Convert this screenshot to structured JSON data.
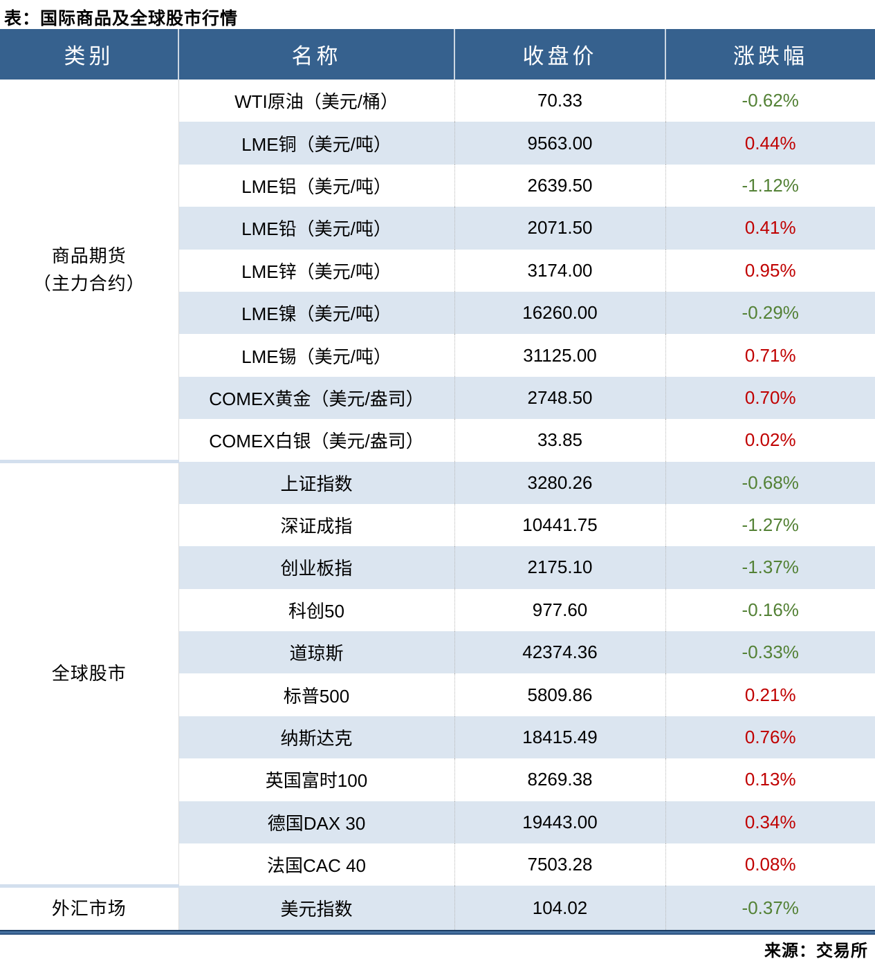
{
  "title": "表：国际商品及全球股市行情",
  "source": "来源：交易所",
  "colors": {
    "header_bg": "#36618e",
    "band_row": "#dbe5f0",
    "positive_change": "#c00000",
    "negative_change": "#538135",
    "category_separator": "#d3dfee",
    "bottom_rule": "#2c5280"
  },
  "table": {
    "columns": [
      "类别",
      "名称",
      "收盘价",
      "涨跌幅"
    ],
    "sections": [
      {
        "category": "商品期货",
        "category_line2": "（主力合约）",
        "rows": [
          {
            "name": "WTI原油（美元/桶）",
            "close": "70.33",
            "change": "-0.62%"
          },
          {
            "name": "LME铜（美元/吨）",
            "close": "9563.00",
            "change": "0.44%"
          },
          {
            "name": "LME铝（美元/吨）",
            "close": "2639.50",
            "change": "-1.12%"
          },
          {
            "name": "LME铅（美元/吨）",
            "close": "2071.50",
            "change": "0.41%"
          },
          {
            "name": "LME锌（美元/吨）",
            "close": "3174.00",
            "change": "0.95%"
          },
          {
            "name": "LME镍（美元/吨）",
            "close": "16260.00",
            "change": "-0.29%"
          },
          {
            "name": "LME锡（美元/吨）",
            "close": "31125.00",
            "change": "0.71%"
          },
          {
            "name": "COMEX黄金（美元/盎司）",
            "close": "2748.50",
            "change": "0.70%"
          },
          {
            "name": "COMEX白银（美元/盎司）",
            "close": "33.85",
            "change": "0.02%"
          }
        ]
      },
      {
        "category": "全球股市",
        "category_line2": "",
        "rows": [
          {
            "name": "上证指数",
            "close": "3280.26",
            "change": "-0.68%"
          },
          {
            "name": "深证成指",
            "close": "10441.75",
            "change": "-1.27%"
          },
          {
            "name": "创业板指",
            "close": "2175.10",
            "change": "-1.37%"
          },
          {
            "name": "科创50",
            "close": "977.60",
            "change": "-0.16%"
          },
          {
            "name": "道琼斯",
            "close": "42374.36",
            "change": "-0.33%"
          },
          {
            "name": "标普500",
            "close": "5809.86",
            "change": "0.21%"
          },
          {
            "name": "纳斯达克",
            "close": "18415.49",
            "change": "0.76%"
          },
          {
            "name": "英国富时100",
            "close": "8269.38",
            "change": "0.13%"
          },
          {
            "name": "德国DAX 30",
            "close": "19443.00",
            "change": "0.34%"
          },
          {
            "name": "法国CAC 40",
            "close": "7503.28",
            "change": "0.08%"
          }
        ]
      },
      {
        "category": "外汇市场",
        "category_line2": "",
        "rows": [
          {
            "name": "美元指数",
            "close": "104.02",
            "change": "-0.37%"
          }
        ]
      }
    ]
  },
  "chart_data": {
    "type": "table",
    "title": "表：国际商品及全球股市行情",
    "source": "来源：交易所",
    "columns": [
      "类别",
      "名称",
      "收盘价",
      "涨跌幅"
    ],
    "legend_note": "涨跌幅: 正值为红色, 负值为绿色",
    "rows": [
      [
        "商品期货（主力合约）",
        "WTI原油（美元/桶）",
        70.33,
        -0.62
      ],
      [
        "商品期货（主力合约）",
        "LME铜（美元/吨）",
        9563.0,
        0.44
      ],
      [
        "商品期货（主力合约）",
        "LME铝（美元/吨）",
        2639.5,
        -1.12
      ],
      [
        "商品期货（主力合约）",
        "LME铅（美元/吨）",
        2071.5,
        0.41
      ],
      [
        "商品期货（主力合约）",
        "LME锌（美元/吨）",
        3174.0,
        0.95
      ],
      [
        "商品期货（主力合约）",
        "LME镍（美元/吨）",
        16260.0,
        -0.29
      ],
      [
        "商品期货（主力合约）",
        "LME锡（美元/吨）",
        31125.0,
        0.71
      ],
      [
        "商品期货（主力合约）",
        "COMEX黄金（美元/盎司）",
        2748.5,
        0.7
      ],
      [
        "商品期货（主力合约）",
        "COMEX白银（美元/盎司）",
        33.85,
        0.02
      ],
      [
        "全球股市",
        "上证指数",
        3280.26,
        -0.68
      ],
      [
        "全球股市",
        "深证成指",
        10441.75,
        -1.27
      ],
      [
        "全球股市",
        "创业板指",
        2175.1,
        -1.37
      ],
      [
        "全球股市",
        "科创50",
        977.6,
        -0.16
      ],
      [
        "全球股市",
        "道琼斯",
        42374.36,
        -0.33
      ],
      [
        "全球股市",
        "标普500",
        5809.86,
        0.21
      ],
      [
        "全球股市",
        "纳斯达克",
        18415.49,
        0.76
      ],
      [
        "全球股市",
        "英国富时100",
        8269.38,
        0.13
      ],
      [
        "全球股市",
        "德国DAX 30",
        19443.0,
        0.34
      ],
      [
        "全球股市",
        "法国CAC 40",
        7503.28,
        0.08
      ],
      [
        "外汇市场",
        "美元指数",
        104.02,
        -0.37
      ]
    ]
  }
}
